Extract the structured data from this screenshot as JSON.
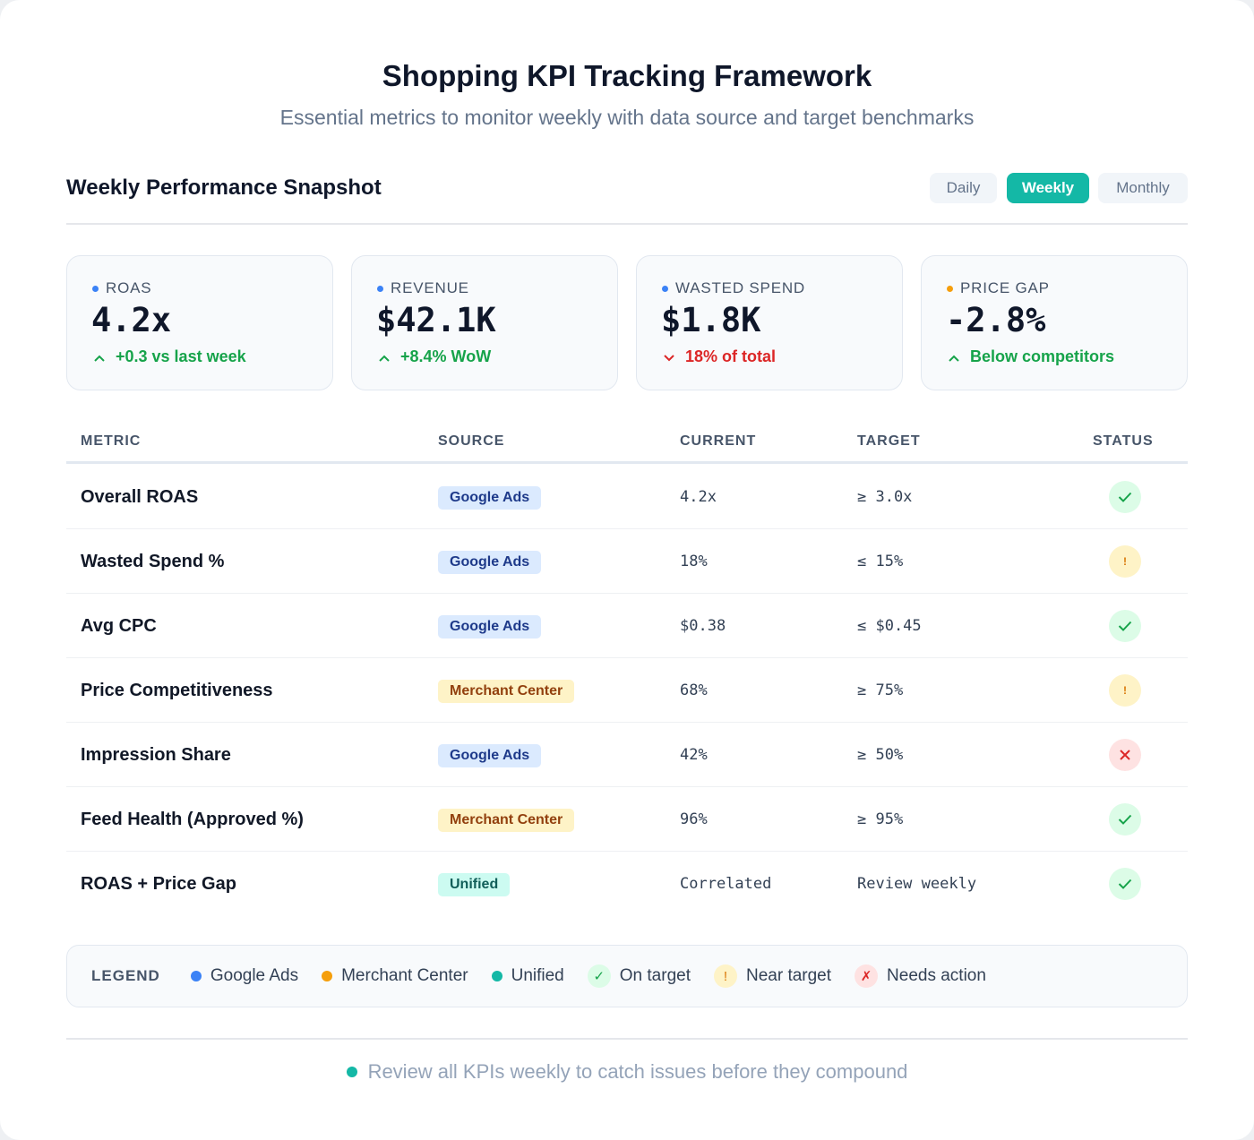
{
  "header": {
    "title": "Shopping KPI Tracking Framework",
    "subtitle": "Essential metrics to monitor weekly with data source and target benchmarks"
  },
  "snapshot": {
    "title": "Weekly Performance Snapshot",
    "toggles": [
      {
        "label": "Daily",
        "active": false
      },
      {
        "label": "Weekly",
        "active": true
      },
      {
        "label": "Monthly",
        "active": false
      }
    ]
  },
  "kpis": [
    {
      "label": "ROAS",
      "value": "4.2x",
      "delta": "+0.3 vs last week",
      "direction": "up",
      "dot_color": "#3b82f6"
    },
    {
      "label": "REVENUE",
      "value": "$42.1K",
      "delta": "+8.4% WoW",
      "direction": "up",
      "dot_color": "#3b82f6"
    },
    {
      "label": "WASTED SPEND",
      "value": "$1.8K",
      "delta": "18% of total",
      "direction": "down",
      "dot_color": "#3b82f6"
    },
    {
      "label": "PRICE GAP",
      "value": "-2.8%",
      "delta": "Below competitors",
      "direction": "up",
      "dot_color": "#f59e0b"
    }
  ],
  "table": {
    "headers": {
      "metric": "METRIC",
      "source": "SOURCE",
      "current": "CURRENT",
      "target": "TARGET",
      "status": "STATUS"
    },
    "rows": [
      {
        "metric": "Overall ROAS",
        "source": "Google Ads",
        "source_type": "google",
        "current": "4.2x",
        "target": "≥ 3.0x",
        "status": "ok"
      },
      {
        "metric": "Wasted Spend %",
        "source": "Google Ads",
        "source_type": "google",
        "current": "18%",
        "target": "≤ 15%",
        "status": "warn"
      },
      {
        "metric": "Avg CPC",
        "source": "Google Ads",
        "source_type": "google",
        "current": "$0.38",
        "target": "≤ $0.45",
        "status": "ok"
      },
      {
        "metric": "Price Competitiveness",
        "source": "Merchant Center",
        "source_type": "merchant",
        "current": "68%",
        "target": "≥ 75%",
        "status": "warn"
      },
      {
        "metric": "Impression Share",
        "source": "Google Ads",
        "source_type": "google",
        "current": "42%",
        "target": "≥ 50%",
        "status": "bad"
      },
      {
        "metric": "Feed Health (Approved %)",
        "source": "Merchant Center",
        "source_type": "merchant",
        "current": "96%",
        "target": "≥ 95%",
        "status": "ok"
      },
      {
        "metric": "ROAS + Price Gap",
        "source": "Unified",
        "source_type": "unified",
        "current": "Correlated",
        "target": "Review weekly",
        "status": "ok"
      }
    ]
  },
  "legend": {
    "title": "LEGEND",
    "items": [
      {
        "label": "Google Ads",
        "kind": "dot",
        "color": "#3b82f6"
      },
      {
        "label": "Merchant Center",
        "kind": "dot",
        "color": "#f59e0b"
      },
      {
        "label": "Unified",
        "kind": "dot",
        "color": "#14b8a6"
      },
      {
        "label": "On target",
        "kind": "ok",
        "glyph": "✓"
      },
      {
        "label": "Near target",
        "kind": "warn",
        "glyph": "!"
      },
      {
        "label": "Needs action",
        "kind": "bad",
        "glyph": "✗"
      }
    ]
  },
  "footer": {
    "text": "Review all KPIs weekly to catch issues before they compound"
  }
}
